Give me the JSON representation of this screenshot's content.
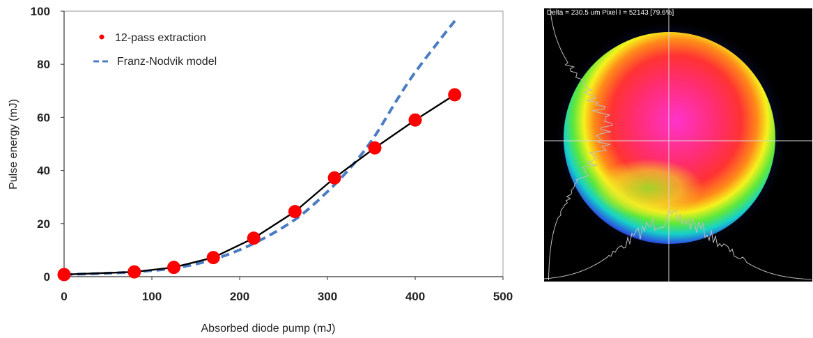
{
  "chart_data": {
    "type": "scatter",
    "title": "",
    "xlabel": "Absorbed diode pump (mJ)",
    "ylabel": "Pulse energy (mJ)",
    "xlim": [
      0,
      500
    ],
    "ylim": [
      0,
      100
    ],
    "xticks": [
      "0",
      "100",
      "200",
      "300",
      "400",
      "500"
    ],
    "yticks": [
      "0",
      "20",
      "40",
      "60",
      "80",
      "100"
    ],
    "grid": false,
    "legend_position": "top-left",
    "series": [
      {
        "name": "12-pass extraction",
        "style": "markers with black connecting line",
        "color": "#ff0000",
        "line_color": "#000000",
        "x": [
          0,
          80,
          125,
          170,
          216,
          263,
          308,
          354,
          400,
          445
        ],
        "y": [
          0.8,
          1.8,
          3.5,
          7.2,
          14.5,
          24.5,
          37.2,
          48.5,
          59.0,
          68.5
        ]
      },
      {
        "name": "Franz-Nodvik model",
        "style": "dashed line",
        "color": "#4a7cc4",
        "x": [
          0,
          50,
          80,
          125,
          170,
          216,
          263,
          300,
          330,
          354,
          380,
          400,
          430,
          448
        ],
        "y": [
          0.8,
          1.3,
          1.8,
          3.2,
          6.5,
          12.5,
          21.5,
          32.0,
          42.5,
          53.0,
          67.0,
          77.0,
          90.0,
          97.5
        ]
      }
    ]
  },
  "beam_image": {
    "header_text": "Delta = 230.5 um Pixel I = 52143 [79.6%]",
    "colormap": "rainbow false-color beam profile",
    "background": "#000000"
  }
}
